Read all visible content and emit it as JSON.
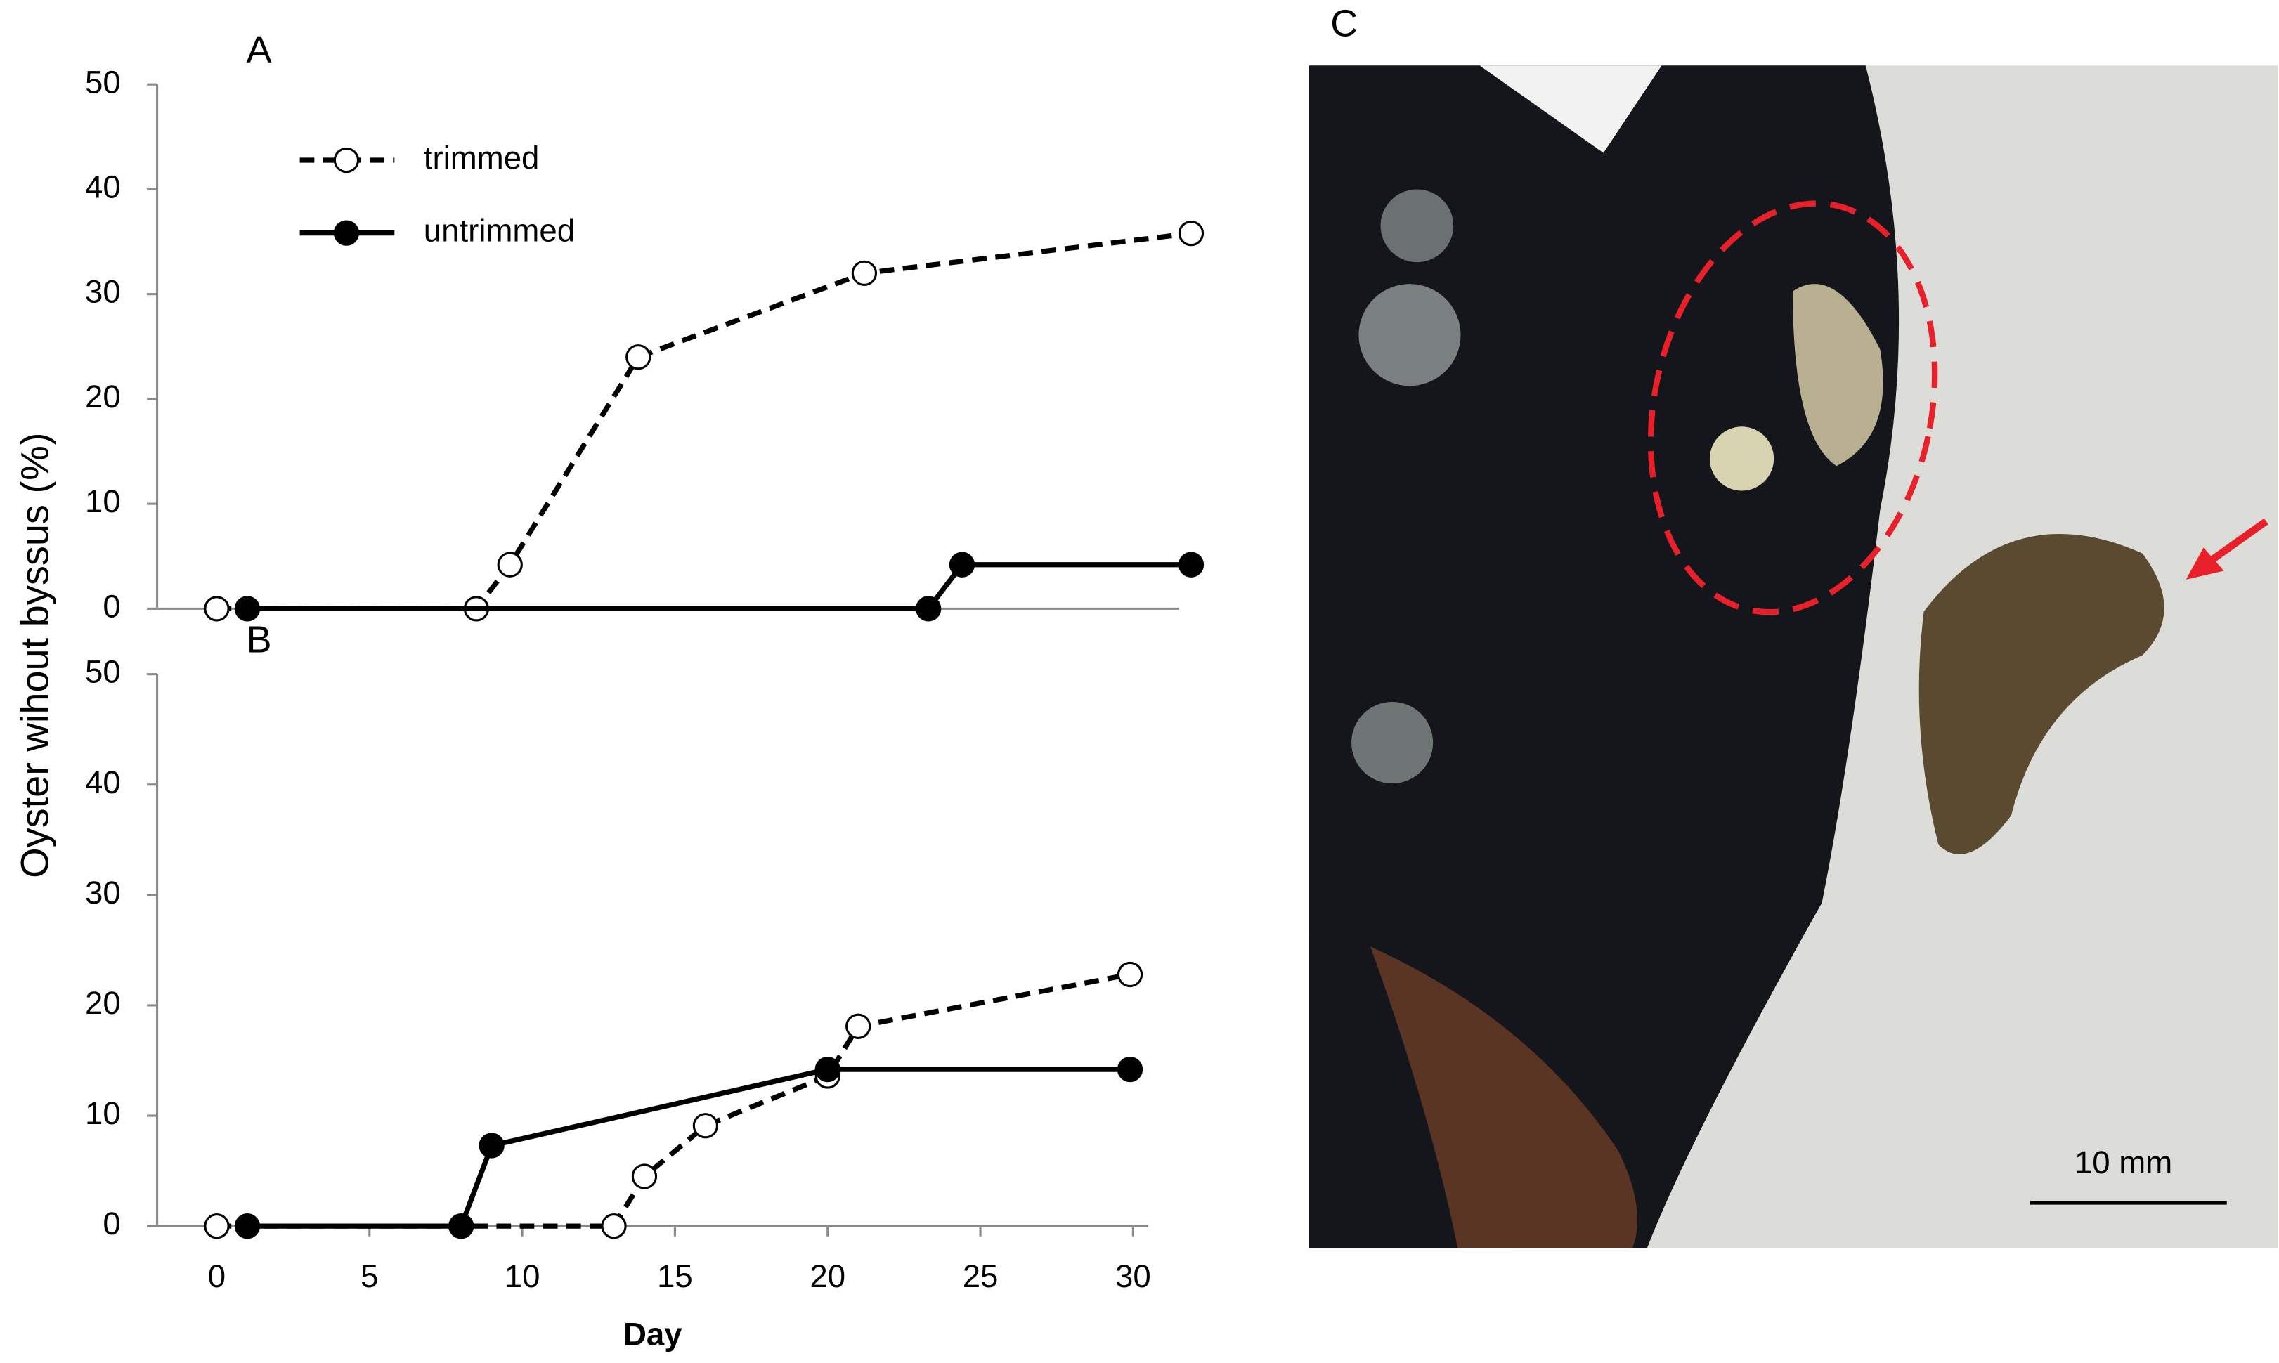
{
  "shared": {
    "y_label": "Oyster wihout byssus (%)"
  },
  "chart_data": [
    {
      "type": "line",
      "title": "A",
      "xlim": [
        -1,
        31.5
      ],
      "ylim": [
        0,
        50
      ],
      "yticks": [
        0,
        10,
        20,
        30,
        40,
        50
      ],
      "legend": "upper left",
      "series": [
        {
          "name": "trimmed",
          "color": "#000000",
          "dashed": true,
          "marker": "open",
          "x": [
            0,
            8.5,
            9.6,
            13.8,
            21.2,
            31.9
          ],
          "values": [
            0,
            0,
            4.2,
            24,
            32,
            35.8
          ]
        },
        {
          "name": "untrimmed",
          "color": "#000000",
          "dashed": false,
          "marker": "filled",
          "x": [
            1,
            23.3,
            24.4,
            31.9
          ],
          "values": [
            0,
            0,
            4.2,
            4.2
          ]
        }
      ]
    },
    {
      "type": "line",
      "title": "B",
      "x_label": "Day",
      "xlim": [
        -1,
        30.5
      ],
      "ylim": [
        0,
        50
      ],
      "xticks": [
        0,
        5,
        10,
        15,
        20,
        25,
        30
      ],
      "yticks": [
        0,
        10,
        20,
        30,
        40,
        50
      ],
      "series": [
        {
          "name": "trimmed",
          "color": "#000000",
          "dashed": true,
          "marker": "open",
          "x": [
            0,
            13,
            14,
            16,
            20,
            21,
            29.9
          ],
          "values": [
            0,
            0,
            4.5,
            9.1,
            13.6,
            18.1,
            22.8
          ]
        },
        {
          "name": "untrimmed",
          "color": "#000000",
          "dashed": false,
          "marker": "filled",
          "x": [
            1,
            8,
            9,
            20,
            29.9
          ],
          "values": [
            0,
            0,
            7.3,
            14.2,
            14.2
          ]
        }
      ]
    }
  ],
  "photo": {
    "label": "C",
    "scale_bar": "10 mm"
  }
}
